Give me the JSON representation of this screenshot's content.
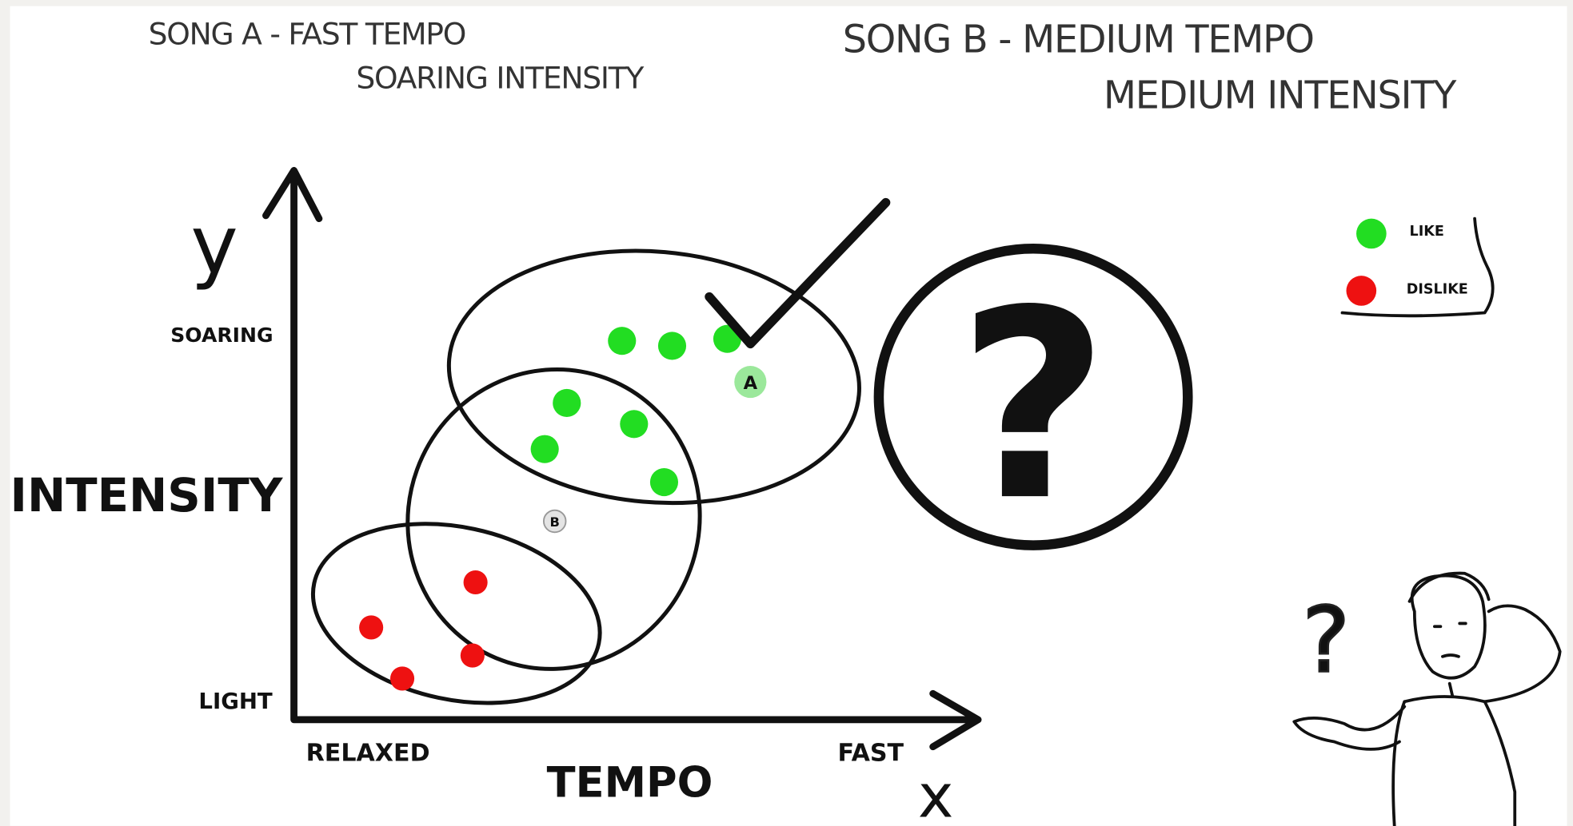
{
  "header": {
    "song_a": {
      "line1": "SONG A - FAST TEMPO",
      "line2": "SOARING INTENSITY"
    },
    "song_b": {
      "line1": "SONG B - MEDIUM TEMPO",
      "line2": "MEDIUM INTENSITY"
    }
  },
  "axes": {
    "y_symbol": "y",
    "y_title": "INTENSITY",
    "y_high": "SOARING",
    "y_low": "LIGHT",
    "x_symbol": "x",
    "x_title": "TEMPO",
    "x_low": "RELAXED",
    "x_high": "FAST"
  },
  "points": {
    "song_a": "A",
    "song_b": "B"
  },
  "question": "?",
  "legend": {
    "like": "LIKE",
    "dislike": "DISLIKE"
  },
  "character_thought": "?"
}
